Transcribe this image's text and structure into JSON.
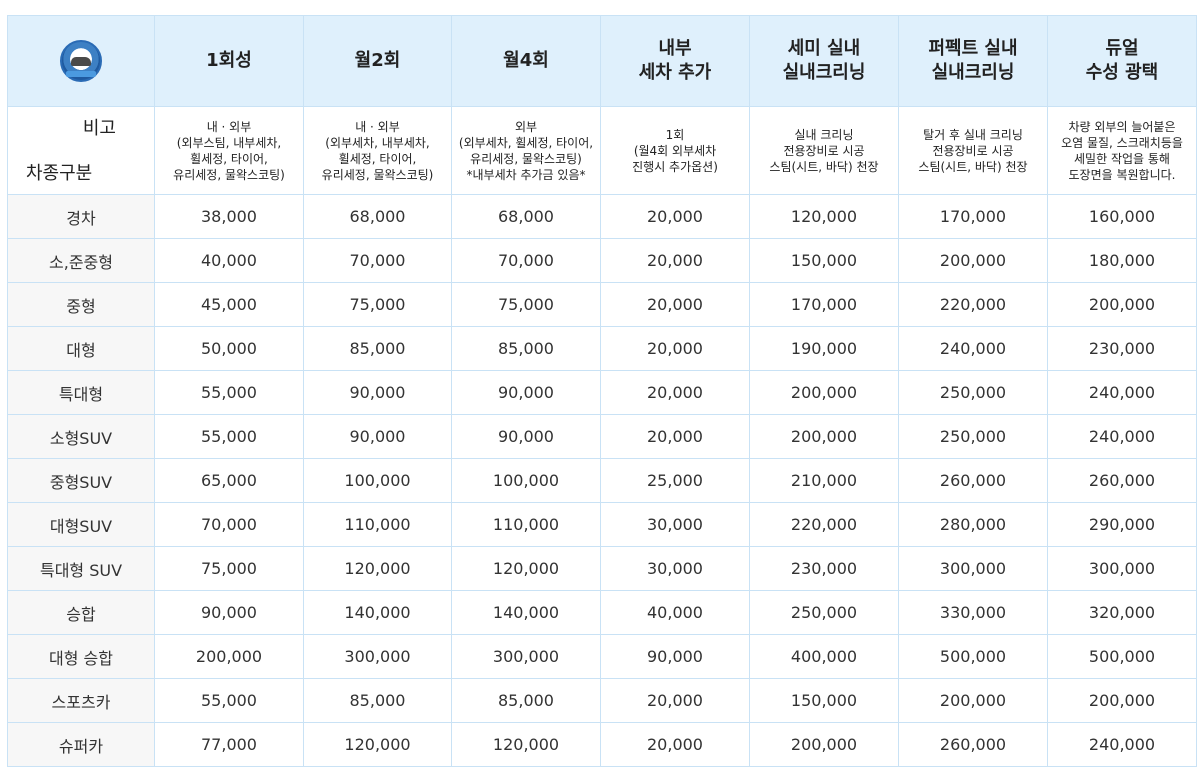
{
  "header": {
    "columns": [
      "1회성",
      "월2회",
      "월4회",
      "내부\n세차 추가",
      "세미 실내\n실내크리닝",
      "퍼펙트 실내\n실내크리닝",
      "듀얼\n수성 광택"
    ]
  },
  "corner": {
    "top_label": "비고",
    "bottom_label": "차종구분"
  },
  "descriptions": [
    "내 · 외부\n(외부스팀, 내부세차,\n휠세정, 타이어,\n유리세정, 물왁스코팅)",
    "내 · 외부\n(외부세차, 내부세차,\n휠세정, 타이어,\n유리세정, 물왁스코팅)",
    "외부\n(외부세차, 휠세정, 타이어,\n유리세정, 물왁스코팅)\n*내부세차 추가금 있음*",
    "1회\n(월4회 외부세차\n진행시 추가옵션)",
    "실내 크리닝\n전용장비로 시공\n스팀(시트, 바닥) 천장",
    "탈거 후 실내 크리닝\n전용장비로 시공\n스팀(시트, 바닥) 천장",
    "차량 외부의 늘어붙은\n오염 물질, 스크래치등을\n세밀한 작업을 통해\n도장면을 복원합니다."
  ],
  "rows": [
    {
      "type": "경차",
      "prices": [
        "38,000",
        "68,000",
        "68,000",
        "20,000",
        "120,000",
        "170,000",
        "160,000"
      ]
    },
    {
      "type": "소,준중형",
      "prices": [
        "40,000",
        "70,000",
        "70,000",
        "20,000",
        "150,000",
        "200,000",
        "180,000"
      ]
    },
    {
      "type": "중형",
      "prices": [
        "45,000",
        "75,000",
        "75,000",
        "20,000",
        "170,000",
        "220,000",
        "200,000"
      ]
    },
    {
      "type": "대형",
      "prices": [
        "50,000",
        "85,000",
        "85,000",
        "20,000",
        "190,000",
        "240,000",
        "230,000"
      ]
    },
    {
      "type": "특대형",
      "prices": [
        "55,000",
        "90,000",
        "90,000",
        "20,000",
        "200,000",
        "250,000",
        "240,000"
      ]
    },
    {
      "type": "소형SUV",
      "prices": [
        "55,000",
        "90,000",
        "90,000",
        "20,000",
        "200,000",
        "250,000",
        "240,000"
      ]
    },
    {
      "type": "중형SUV",
      "prices": [
        "65,000",
        "100,000",
        "100,000",
        "25,000",
        "210,000",
        "260,000",
        "260,000"
      ]
    },
    {
      "type": "대형SUV",
      "prices": [
        "70,000",
        "110,000",
        "110,000",
        "30,000",
        "220,000",
        "280,000",
        "290,000"
      ]
    },
    {
      "type": "특대형 SUV",
      "prices": [
        "75,000",
        "120,000",
        "120,000",
        "30,000",
        "230,000",
        "300,000",
        "300,000"
      ]
    },
    {
      "type": "승합",
      "prices": [
        "90,000",
        "140,000",
        "140,000",
        "40,000",
        "250,000",
        "330,000",
        "320,000"
      ]
    },
    {
      "type": "대형 승합",
      "prices": [
        "200,000",
        "300,000",
        "300,000",
        "90,000",
        "400,000",
        "500,000",
        "500,000"
      ]
    },
    {
      "type": "스포츠카",
      "prices": [
        "55,000",
        "85,000",
        "85,000",
        "20,000",
        "150,000",
        "200,000",
        "200,000"
      ]
    },
    {
      "type": "슈퍼카",
      "prices": [
        "77,000",
        "120,000",
        "120,000",
        "20,000",
        "200,000",
        "260,000",
        "240,000"
      ]
    }
  ],
  "colors": {
    "header_bg": "#dff0fc",
    "border": "#c9e2f5",
    "rowhead_bg": "#f7f7f7"
  }
}
